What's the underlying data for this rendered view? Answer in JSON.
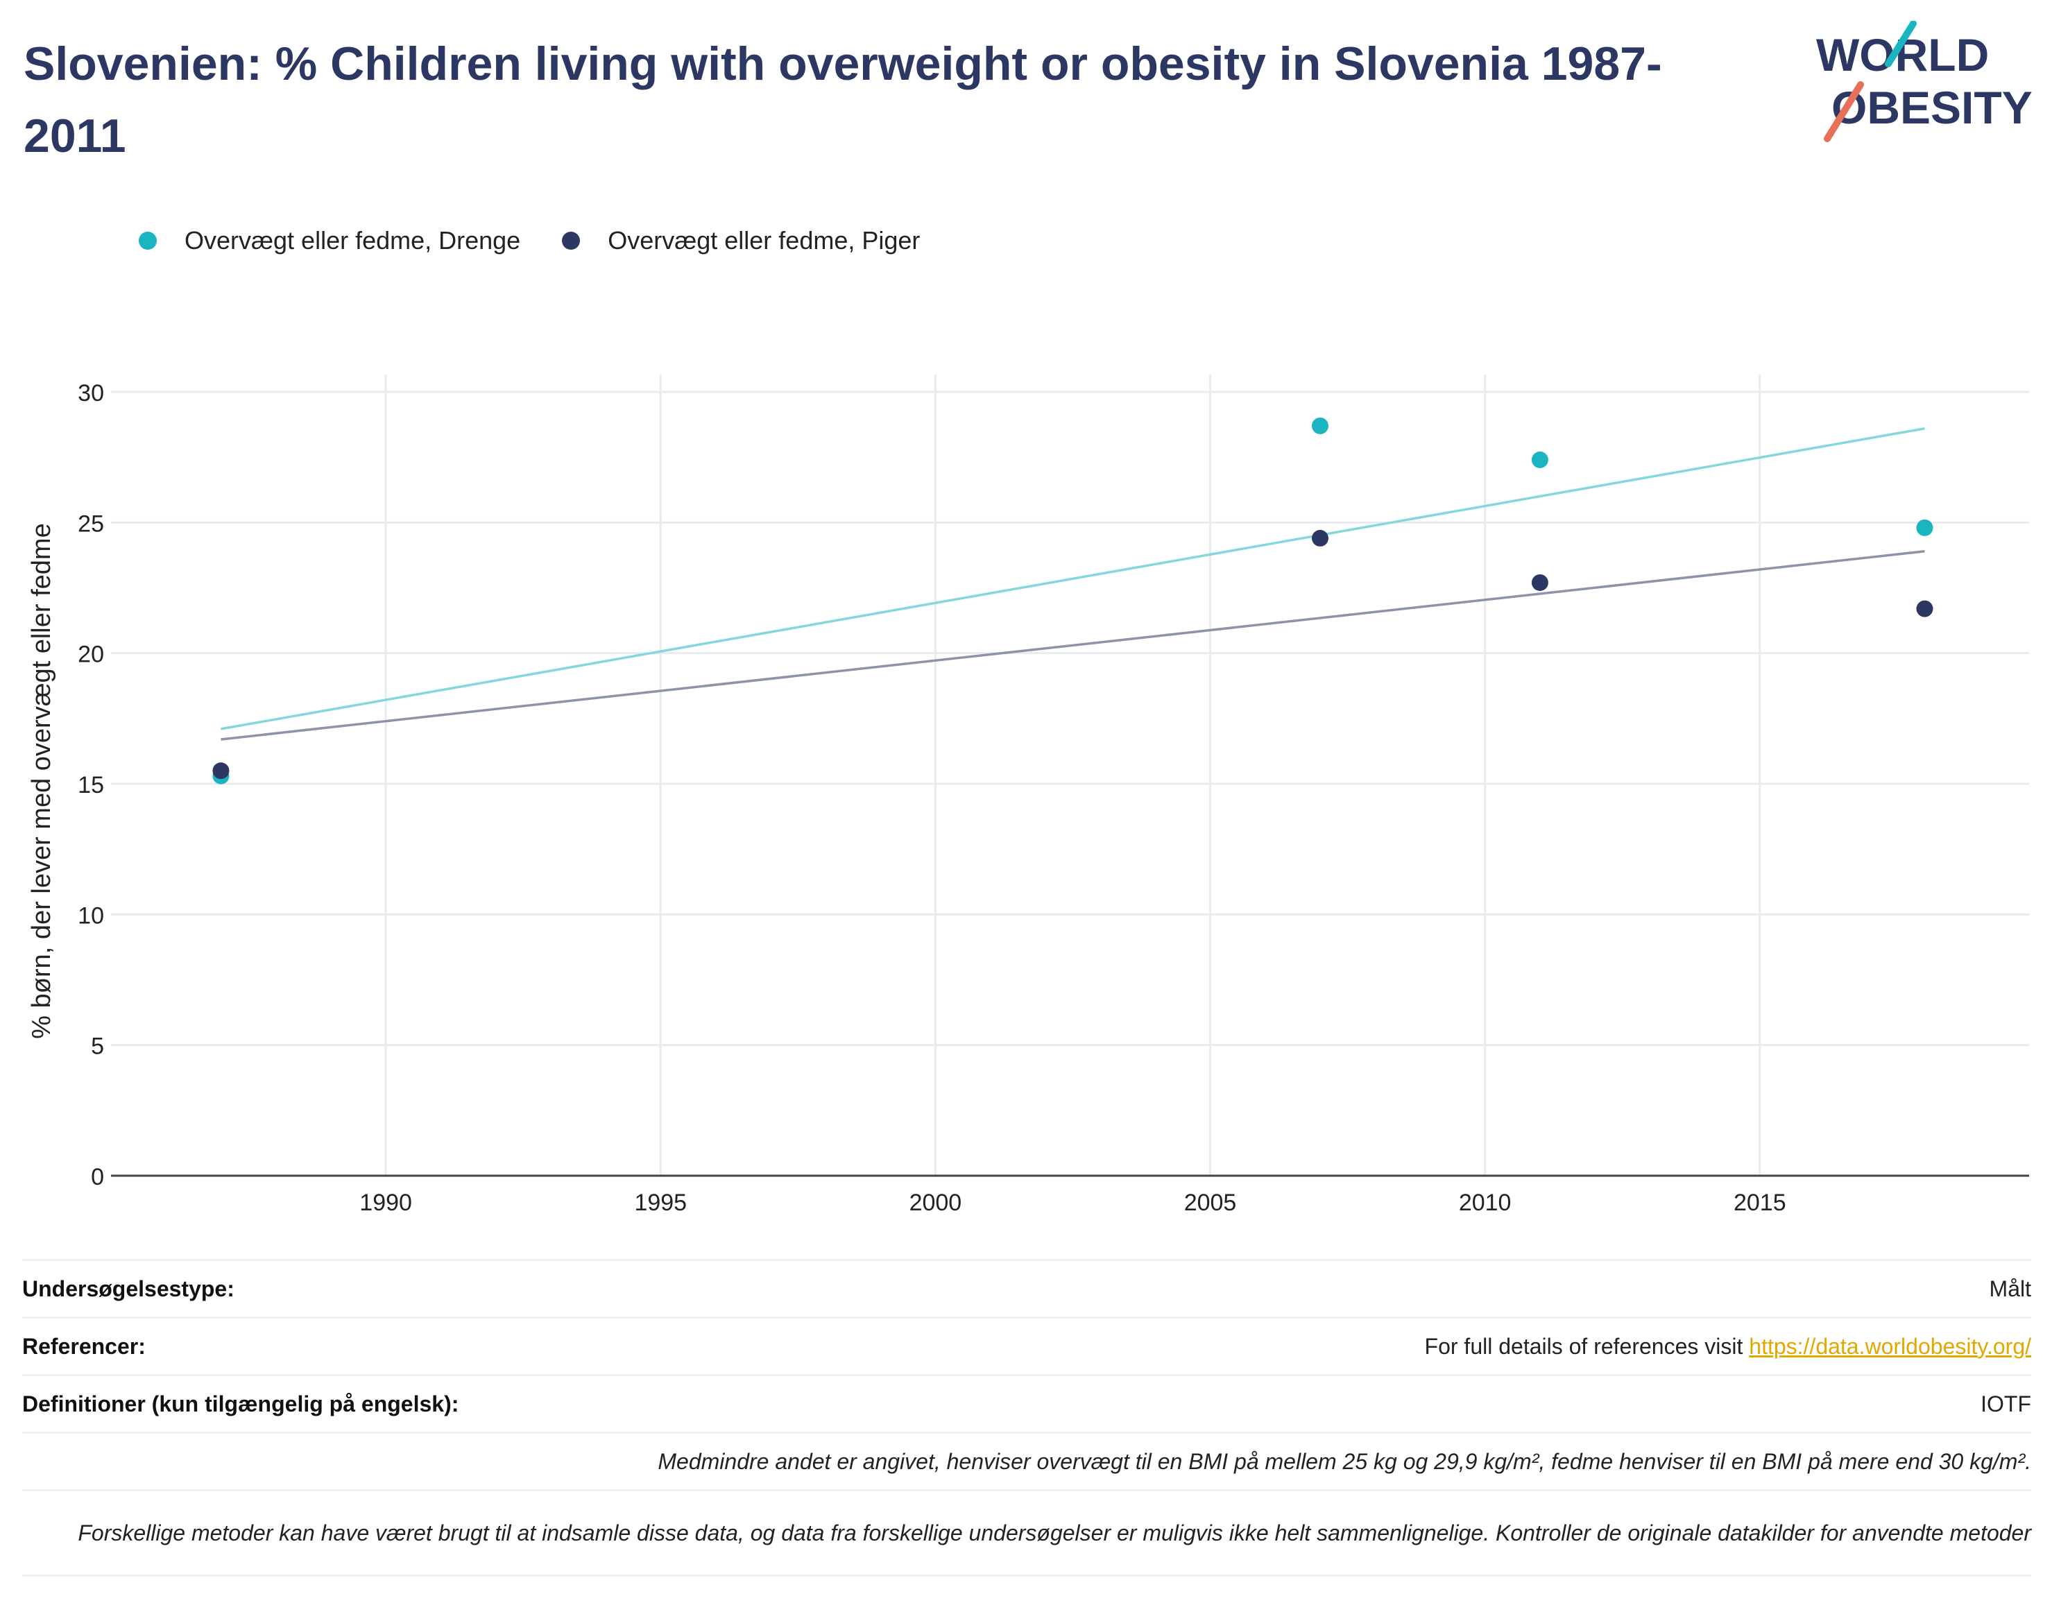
{
  "header": {
    "title": "Slovenien: % Children living with overweight or obesity in Slovenia 1987-2011",
    "logo_line1": "WORLD",
    "logo_line2": "OBESITY"
  },
  "colors": {
    "boys": "#1bb5c1",
    "girls": "#2c3764",
    "boys_trend": "#84d7dc",
    "girls_trend": "#8c93ab",
    "title": "#2c3764",
    "link": "#e0a800",
    "grid": "#e9ebf0"
  },
  "chart_data": {
    "type": "scatter",
    "title": "Slovenien: % Children living with overweight or obesity in Slovenia 1987-2011",
    "xlabel": "",
    "ylabel": "% børn, der lever med overvægt eller fedme",
    "xlim": [
      1985,
      2019.9
    ],
    "ylim": [
      0,
      30
    ],
    "x_ticks": [
      1990,
      1995,
      2000,
      2005,
      2010,
      2015
    ],
    "y_ticks": [
      0,
      5,
      10,
      15,
      20,
      25,
      30
    ],
    "grid": true,
    "legend_position": "top-left",
    "series": [
      {
        "name": "Overvægt eller fedme, Drenge",
        "color": "#1bb5c1",
        "trend_color": "#84d7dc",
        "points": [
          {
            "x": 1987,
            "y": 15.3
          },
          {
            "x": 2007,
            "y": 28.7
          },
          {
            "x": 2011,
            "y": 27.4
          },
          {
            "x": 2018,
            "y": 24.8
          }
        ],
        "trend": [
          {
            "x": 1987,
            "y": 17.1
          },
          {
            "x": 2018,
            "y": 28.6
          }
        ]
      },
      {
        "name": "Overvægt eller fedme, Piger",
        "color": "#2c3764",
        "trend_color": "#8c93ab",
        "points": [
          {
            "x": 1987,
            "y": 15.5
          },
          {
            "x": 2007,
            "y": 24.4
          },
          {
            "x": 2011,
            "y": 22.7
          },
          {
            "x": 2018,
            "y": 21.7
          }
        ],
        "trend": [
          {
            "x": 1987,
            "y": 16.7
          },
          {
            "x": 2018,
            "y": 23.9
          }
        ]
      }
    ]
  },
  "meta": {
    "survey_type_label": "Undersøgelsestype:",
    "survey_type_value": "Målt",
    "references_label": "Referencer:",
    "references_text": "For full details of references visit ",
    "references_link": "https://data.worldobesity.org/",
    "definitions_label": "Definitioner (kun tilgængelig på engelsk):",
    "definitions_value": "IOTF",
    "note_bmi": "Medmindre andet er angivet, henviser overvægt til en BMI på mellem 25 kg og 29,9 kg/m², fedme henviser til en BMI på mere end 30 kg/m².",
    "note_methods": "Forskellige metoder kan have været brugt til at indsamle disse data, og data fra forskellige undersøgelser er muligvis ikke helt sammenlignelige. Kontroller de originale datakilder for anvendte metoder"
  }
}
